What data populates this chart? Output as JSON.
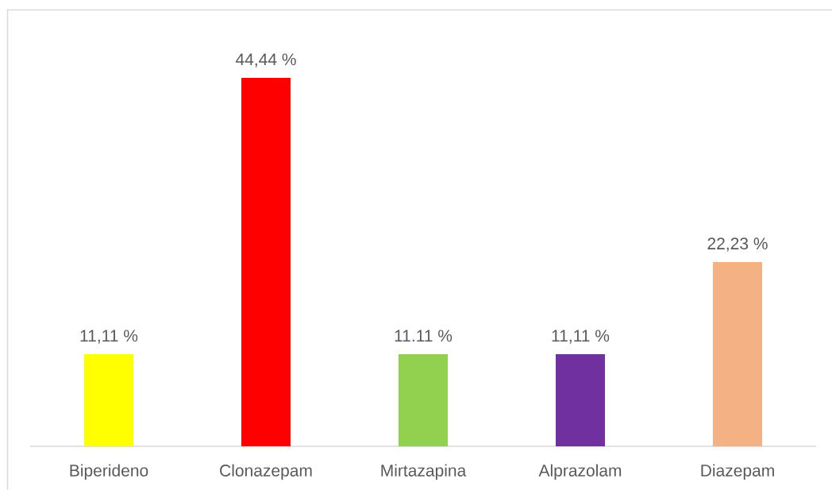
{
  "chart_data": {
    "type": "bar",
    "categories": [
      "Biperideno",
      "Clonazepam",
      "Mirtazapina",
      "Alprazolam",
      "Diazepam"
    ],
    "values": [
      11.11,
      44.44,
      11.11,
      11.11,
      22.23
    ],
    "colors": [
      "#ffff00",
      "#ff0000",
      "#92d050",
      "#7030a0",
      "#f4b183"
    ],
    "value_labels": [
      "11,11 %",
      "44,44 %",
      "11.11 %",
      "11,11 %",
      "22,23 %"
    ]
  }
}
